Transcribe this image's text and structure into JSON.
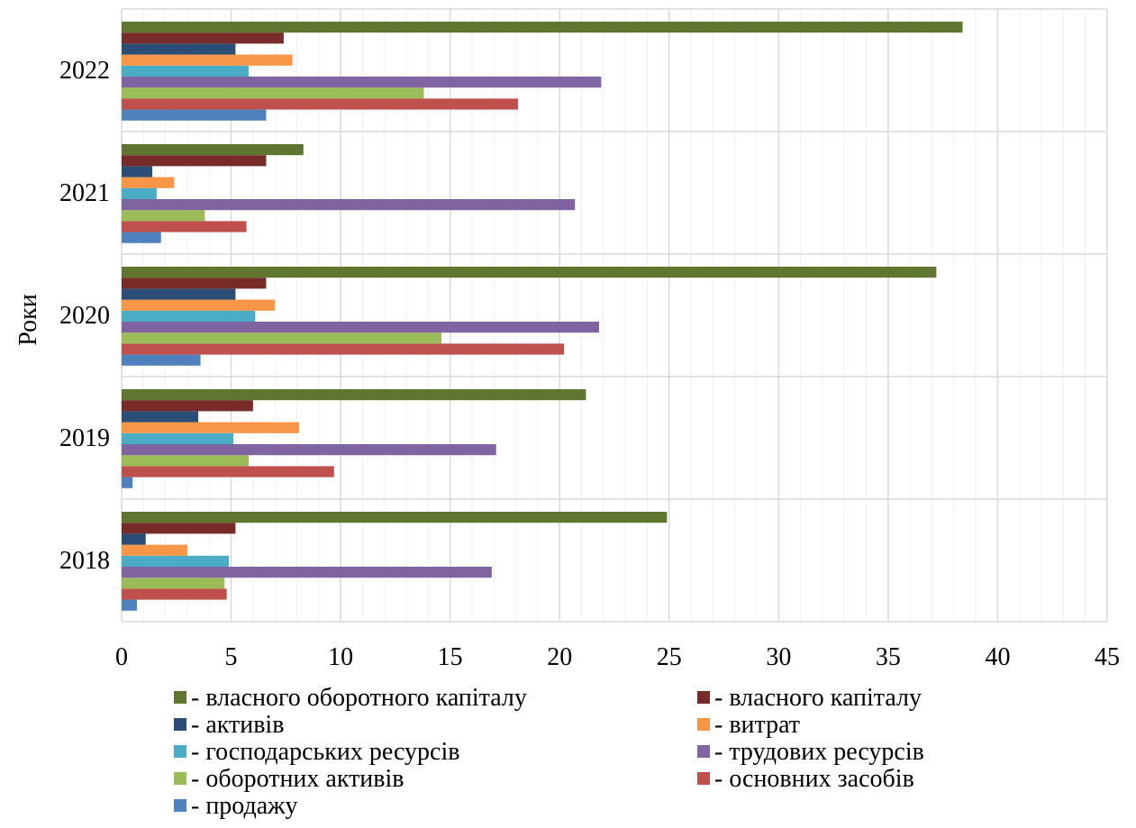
{
  "chart_data": {
    "type": "bar",
    "orientation": "horizontal",
    "title": "",
    "ylabel": "Роки",
    "xlabel": "",
    "xlim": [
      0,
      45
    ],
    "x_ticks": [
      0,
      5,
      10,
      15,
      20,
      25,
      30,
      35,
      40,
      45
    ],
    "grid": true,
    "legend_position": "bottom",
    "categories": [
      "2018",
      "2019",
      "2020",
      "2021",
      "2022"
    ],
    "series": [
      {
        "name": "- продажу",
        "color": "#4f81bd",
        "values": [
          0.7,
          0.5,
          3.6,
          1.8,
          6.6
        ]
      },
      {
        "name": "- основних засобів",
        "color": "#c0504d",
        "values": [
          4.8,
          9.7,
          20.2,
          5.7,
          18.1
        ]
      },
      {
        "name": "- оборотних активів",
        "color": "#9bbb59",
        "values": [
          4.7,
          5.8,
          14.6,
          3.8,
          13.8
        ]
      },
      {
        "name": "- трудових ресурсів",
        "color": "#8064a2",
        "values": [
          16.9,
          17.1,
          21.8,
          20.7,
          21.9
        ]
      },
      {
        "name": "- господарських ресурсів",
        "color": "#4bacc6",
        "values": [
          4.9,
          5.1,
          6.1,
          1.6,
          5.8
        ]
      },
      {
        "name": "- витрат",
        "color": "#f79646",
        "values": [
          3.0,
          8.1,
          7.0,
          2.4,
          7.8
        ]
      },
      {
        "name": "- активів",
        "color": "#2c4d75",
        "values": [
          1.1,
          3.5,
          5.2,
          1.4,
          5.2
        ]
      },
      {
        "name": "- власного капіталу",
        "color": "#772c2a",
        "values": [
          5.2,
          6.0,
          6.6,
          6.6,
          7.4
        ]
      },
      {
        "name": "- власного оборотного капіталу",
        "color": "#5f7530",
        "values": [
          24.9,
          21.2,
          37.2,
          8.3,
          38.4
        ]
      }
    ],
    "legend_order": [
      "- власного оборотного капіталу",
      "- власного капіталу",
      "- активів",
      "- витрат",
      "- господарських ресурсів",
      "- трудових ресурсів",
      "- оборотних активів",
      "- основних засобів",
      "- продажу"
    ]
  }
}
